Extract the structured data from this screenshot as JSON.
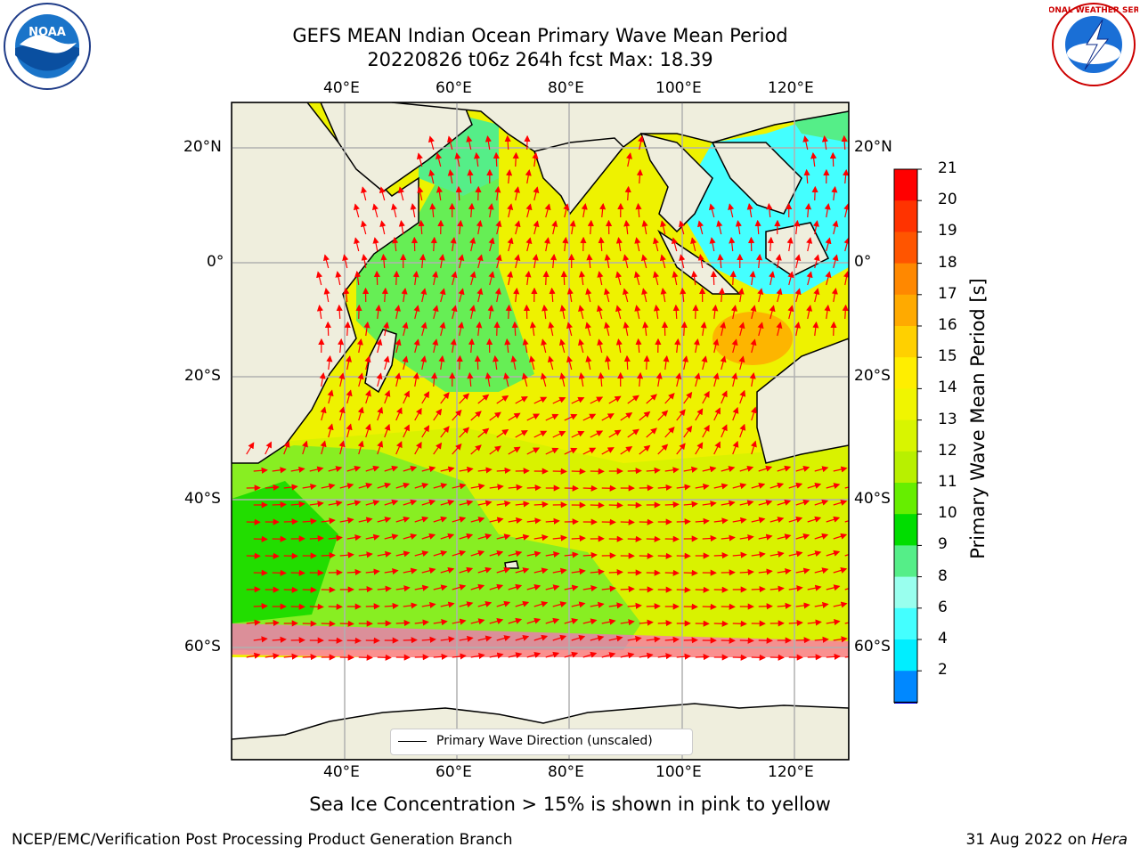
{
  "header": {
    "title_line1": "GEFS MEAN Indian Ocean Primary Wave Mean Period",
    "title_line2": "20220826 t06z 264h fcst   Max: 18.39"
  },
  "logos": {
    "noaa_text": "NOAA",
    "nws_text": "NATIONAL WEATHER SERVICE"
  },
  "map": {
    "lon_ticks": [
      "40°E",
      "60°E",
      "80°E",
      "100°E",
      "120°E"
    ],
    "lat_ticks": [
      "20°N",
      "0°",
      "20°S",
      "40°S",
      "60°S"
    ],
    "legend_label": "Primary Wave Direction (unscaled)",
    "colors": {
      "land": "#efeedd",
      "ice_free_white": "#ffffff",
      "arrow": "#ff0000",
      "grid": "#b0b0b0"
    }
  },
  "colorbar": {
    "label": "Primary Wave Mean Period [s]",
    "ticks": [
      "21",
      "20",
      "19",
      "18",
      "17",
      "16",
      "15",
      "14",
      "13",
      "12",
      "11",
      "10",
      "9",
      "8",
      "6",
      "4",
      "2"
    ],
    "colors": [
      "#ff0000",
      "#ff3300",
      "#ff5500",
      "#ff8800",
      "#ffaa00",
      "#ffd000",
      "#ffee00",
      "#f0f500",
      "#d8f500",
      "#b8f000",
      "#66ee00",
      "#00dd00",
      "#55ee88",
      "#99ffee",
      "#44ffff",
      "#00eeff",
      "#0088ff"
    ],
    "extend_color": "#0000ee"
  },
  "footer": {
    "note": "Sea Ice Concentration > 15% is shown in pink to yellow",
    "branch": "NCEP/EMC/Verification Post Processing Product Generation Branch",
    "date": "31 Aug 2022 on ",
    "machine": "Hera"
  }
}
